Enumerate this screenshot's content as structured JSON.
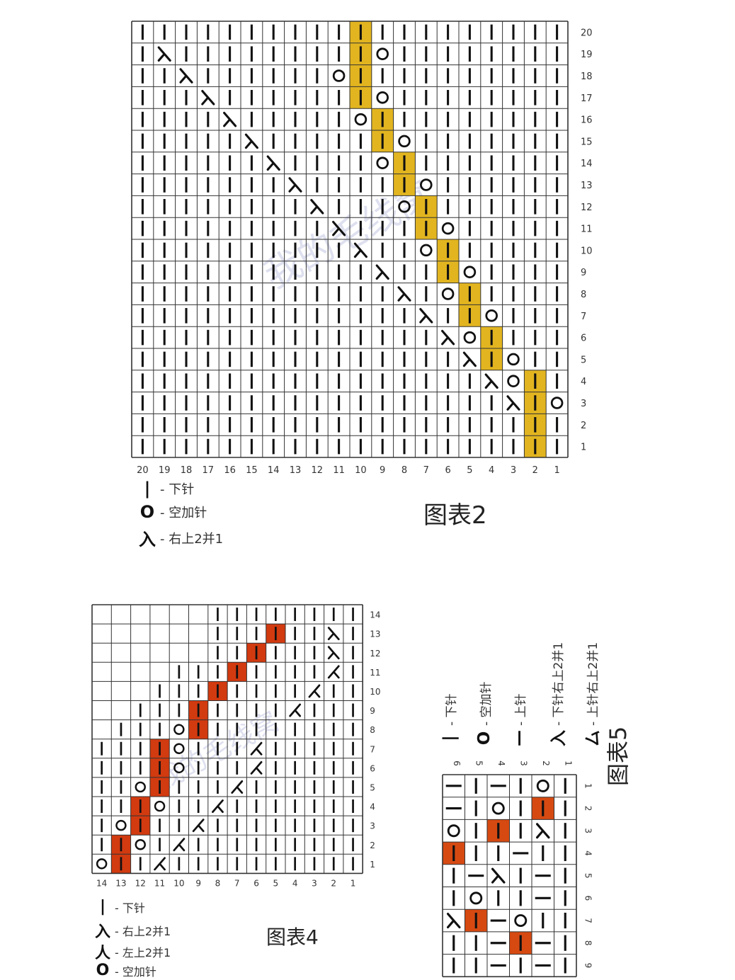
{
  "colors": {
    "grid_line": "#333333",
    "stitch": "#111111",
    "highlight_chart2": "#E2B520",
    "highlight_chart4": "#D23A10",
    "highlight_chart5": "#D64A12",
    "background": "#ffffff"
  },
  "watermark": "我的毛线窝",
  "charts": {
    "chart2": {
      "title": "图表2",
      "cols": 20,
      "rows": 20,
      "col_labels": [
        "20",
        "19",
        "18",
        "17",
        "16",
        "15",
        "14",
        "13",
        "12",
        "11",
        "10",
        "9",
        "8",
        "7",
        "6",
        "5",
        "4",
        "3",
        "2",
        "1"
      ],
      "row_labels": [
        "20",
        "19",
        "18",
        "17",
        "16",
        "15",
        "14",
        "13",
        "12",
        "11",
        "10",
        "9",
        "8",
        "7",
        "6",
        "5",
        "4",
        "3",
        "2",
        "1"
      ],
      "legend": [
        {
          "symbol": "|",
          "icon": "knit-stitch-icon",
          "label": "- 下针"
        },
        {
          "symbol": "O",
          "icon": "yarn-over-icon",
          "label": "- 空加针"
        },
        {
          "symbol": "入",
          "icon": "right-decrease-icon",
          "label": "- 右上2并1"
        }
      ],
      "grid": [
        "KKKKKKKKKKHKKKKKKKKK",
        "KLKKKKKKKKHOKKKKKKKK",
        "KKLKKKKKKOHKKKKKKKKK",
        "KKKLKKKKKKHOKKKKKKKK",
        "KKKKLKKKKKOHKKKKKKKK",
        "KKKKKLKKKKKHOKKKKKKK",
        "KKKKKKLKKKKOHKKKKKKK",
        "KKKKKKKLKKKKHOKKKKKK",
        "KKKKKKKKLKKKOHKKKKKK",
        "KKKKKKKKKLKKKHOKKKKK",
        "KKKKKKKKKKLKKOHKKKKK",
        "KKKKKKKKKKKLKKHOKKKK",
        "KKKKKKKKKKKKLKOHKKKK",
        "KKKKKKKKKKKKKLKHOKKK",
        "KKKKKKKKKKKKKKLOHKKK",
        "KKKKKKKKKKKKKKKLHOKK",
        "KKKKKKKKKKKKKKKKLOHK",
        "KKKKKKKKKKKKKKKKKLHO",
        "KKKKKKKKKKKKKKKKKKHK",
        "KKKKKKKKKKKKKKKKKKHK"
      ]
    },
    "chart4": {
      "title": "图表4",
      "cols": 14,
      "rows": 14,
      "col_labels": [
        "14",
        "13",
        "12",
        "11",
        "10",
        "9",
        "8",
        "7",
        "6",
        "5",
        "4",
        "3",
        "2",
        "1"
      ],
      "row_labels": [
        "14",
        "13",
        "12",
        "11",
        "10",
        "9",
        "8",
        "7",
        "6",
        "5",
        "4",
        "3",
        "2",
        "1"
      ],
      "legend": [
        {
          "symbol": "|",
          "icon": "knit-stitch-icon",
          "label": "- 下针"
        },
        {
          "symbol": "入",
          "icon": "right-decrease-icon",
          "label": "- 右上2并1"
        },
        {
          "symbol": "人",
          "icon": "left-decrease-icon",
          "label": "- 左上2并1"
        },
        {
          "symbol": "O",
          "icon": "yarn-over-icon",
          "label": "- 空加针"
        }
      ],
      "grid": [
        "......KKKKKKKK",
        "......KKKHKKLK",
        "......KKHKKKLK",
        "....KKKHKKKKRK",
        "...KKKHKKKKRKK",
        "..KKKHKKKKRKKK",
        ".KKKOHKKKKKKKK",
        "KKKHOKKKRKKKKK",
        "KKKHOKKKRKKKKK",
        "KKOHKKKRKKKKKK",
        "KKHOKKRKKKKKKK",
        "KOHKKRKKKKKKKK",
        "KHOKRKKKKKKKKK",
        "OHKRKKKKKKKKKK"
      ]
    },
    "chart5": {
      "title": "图表5",
      "cols": 6,
      "rows": 9,
      "col_labels": [
        "6",
        "5",
        "4",
        "3",
        "2",
        "1"
      ],
      "row_labels": [
        "1",
        "2",
        "3",
        "4",
        "5",
        "6",
        "7",
        "8",
        "9"
      ],
      "legend": [
        {
          "symbol": "|",
          "icon": "knit-stitch-icon",
          "label": "- 下针"
        },
        {
          "symbol": "O",
          "icon": "yarn-over-icon",
          "label": "- 空加针"
        },
        {
          "symbol": "—",
          "icon": "purl-stitch-icon",
          "label": "- 上针"
        },
        {
          "symbol": "入",
          "icon": "right-decrease-icon",
          "label": "- 下针右上2并1"
        },
        {
          "symbol": "厶",
          "icon": "purl-decrease-icon",
          "label": "- 上针右上2并1"
        }
      ],
      "grid": [
        "PKPKOK",
        "PKOKHK",
        "OKHKLK",
        "HDKPKK",
        "KPLKPK",
        "KOKDPK",
        "LHPOKK",
        "KKPHPK",
        "KKPKPK"
      ]
    }
  }
}
